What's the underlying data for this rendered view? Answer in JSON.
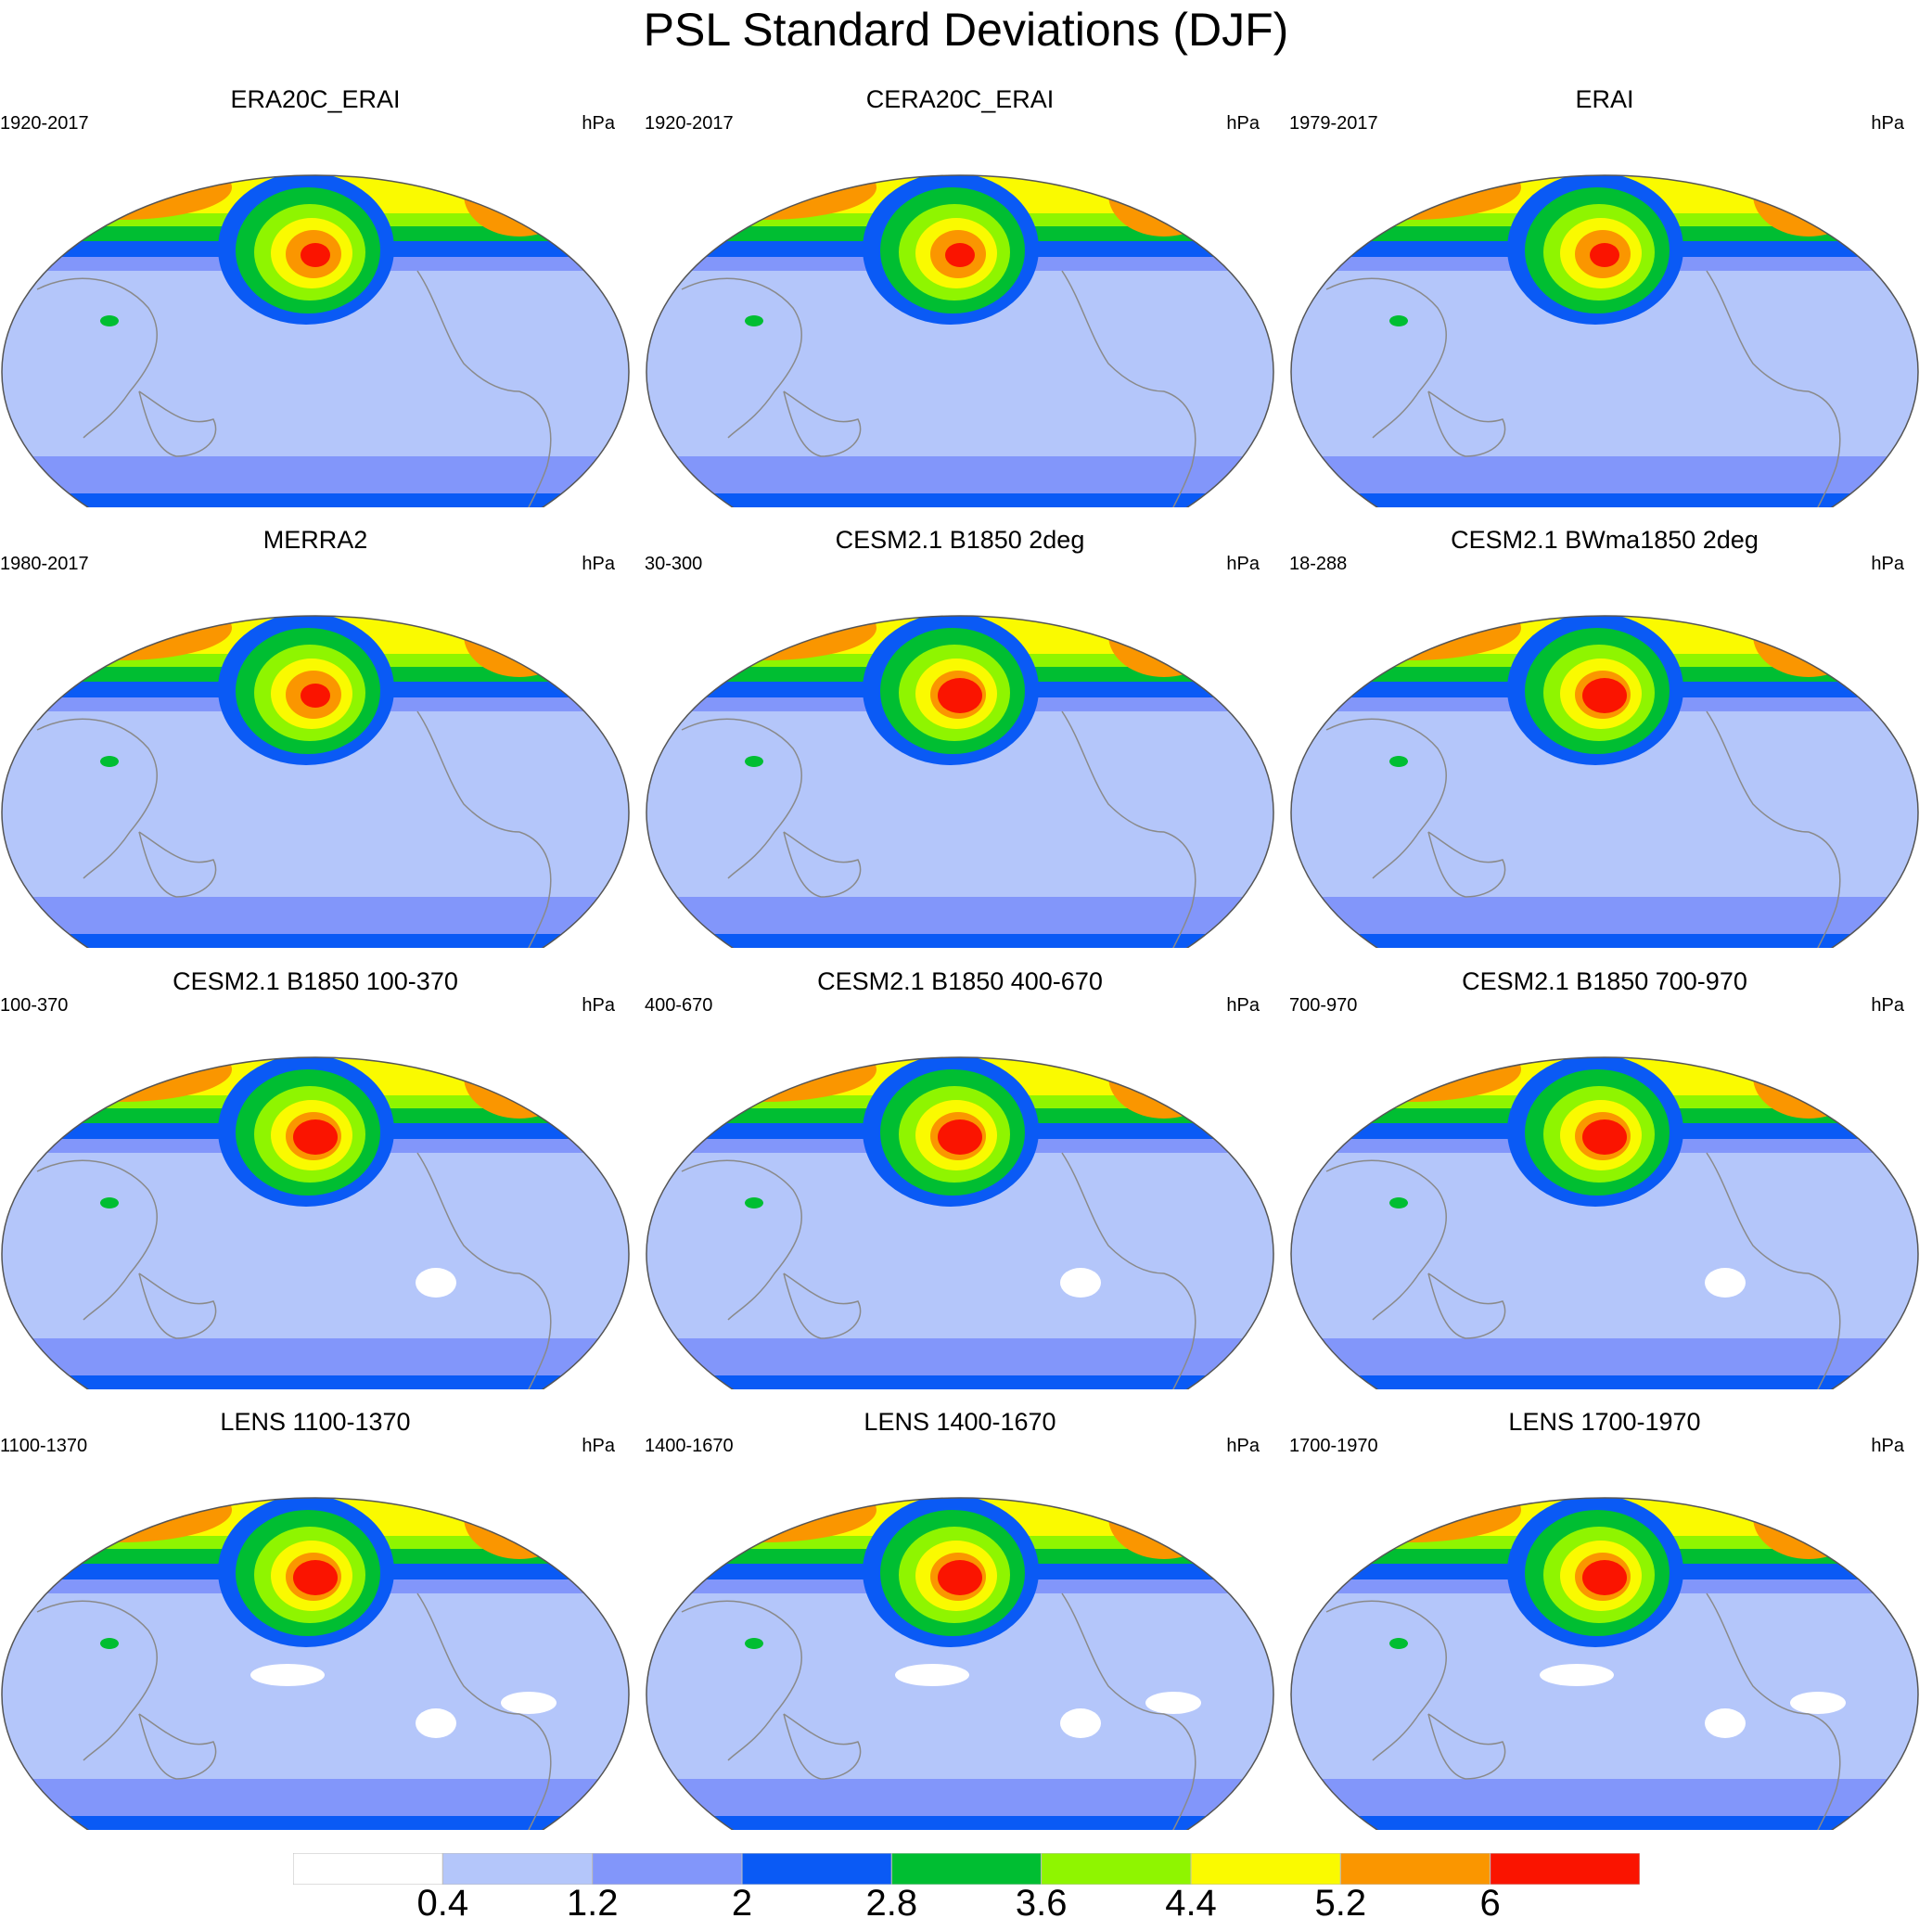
{
  "title": "PSL Standard Deviations (DJF)",
  "colors": {
    "levels": [
      "#ffffff",
      "#b4c6fa",
      "#8296fa",
      "#0a5af5",
      "#00be32",
      "#8ff500",
      "#fafa00",
      "#fa9600",
      "#fa1400"
    ],
    "coast": "#8a8a8a",
    "outline": "#555555"
  },
  "colorbar": {
    "labels": [
      "0.4",
      "1.2",
      "2",
      "2.8",
      "3.6",
      "4.4",
      "5.2",
      "6"
    ]
  },
  "panels": [
    {
      "title": "ERA20C_ERAI",
      "period": "1920-2017",
      "units": "hPa"
    },
    {
      "title": "CERA20C_ERAI",
      "period": "1920-2017",
      "units": "hPa"
    },
    {
      "title": "ERAI",
      "period": "1979-2017",
      "units": "hPa"
    },
    {
      "title": "MERRA2",
      "period": "1980-2017",
      "units": "hPa"
    },
    {
      "title": "CESM2.1 B1850 2deg",
      "period": "30-300",
      "units": "hPa"
    },
    {
      "title": "CESM2.1 BWma1850 2deg",
      "period": "18-288",
      "units": "hPa"
    },
    {
      "title": "CESM2.1 B1850 100-370",
      "period": "100-370",
      "units": "hPa"
    },
    {
      "title": "CESM2.1 B1850 400-670",
      "period": "400-670",
      "units": "hPa"
    },
    {
      "title": "CESM2.1 B1850 700-970",
      "period": "700-970",
      "units": "hPa"
    },
    {
      "title": "LENS 1100-1370",
      "period": "1100-1370",
      "units": "hPa"
    },
    {
      "title": "LENS 1400-1670",
      "period": "1400-1670",
      "units": "hPa"
    },
    {
      "title": "LENS 1700-1970",
      "period": "1700-1970",
      "units": "hPa"
    }
  ]
}
